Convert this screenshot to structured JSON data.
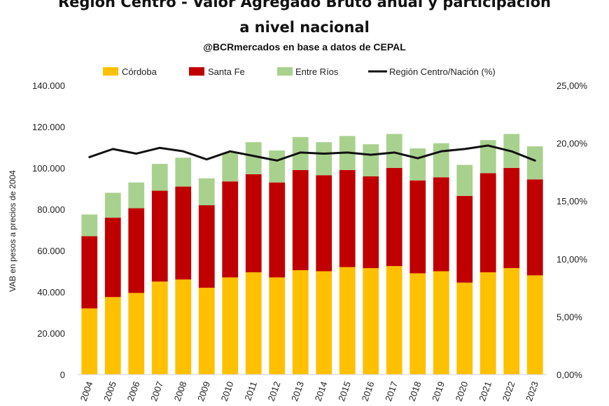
{
  "chart_data": {
    "type": "bar",
    "stacked": true,
    "title_line1": "Región Centro - Valor Agregado Bruto anual y participación",
    "title_line2": "a nivel nacional",
    "subtitle": "@BCRmercados en base a datos de CEPAL",
    "ylabel": "VAB en pesos a precios de 2004",
    "categories": [
      "2004",
      "2005",
      "2006",
      "2007",
      "2008",
      "2009",
      "2010",
      "2011",
      "2012",
      "2013",
      "2014",
      "2015",
      "2016",
      "2017",
      "2018",
      "2019",
      "2020",
      "2021",
      "2022",
      "2023"
    ],
    "series": [
      {
        "name": "Córdoba",
        "color": "#FFC000",
        "values": [
          32000,
          37500,
          39500,
          45000,
          46000,
          42000,
          47000,
          49500,
          47000,
          50500,
          50000,
          52000,
          51500,
          52500,
          49000,
          50000,
          44500,
          49500,
          51500,
          48000
        ]
      },
      {
        "name": "Santa Fe",
        "color": "#C00000",
        "values": [
          35000,
          38500,
          41000,
          44000,
          45000,
          40000,
          46500,
          47500,
          46000,
          48500,
          46500,
          47000,
          44500,
          47500,
          45000,
          45500,
          42000,
          48000,
          48500,
          46500
        ]
      },
      {
        "name": "Entre Ríos",
        "color": "#A9D18E",
        "values": [
          10500,
          12000,
          12500,
          13000,
          14000,
          13000,
          14000,
          15500,
          15500,
          16000,
          16000,
          16500,
          15500,
          16500,
          15500,
          16500,
          15000,
          16000,
          16500,
          16000
        ]
      }
    ],
    "line_series": {
      "name": "Región Centro/Nación (%)",
      "color": "#111111",
      "values": [
        18.8,
        19.5,
        19.1,
        19.6,
        19.3,
        18.6,
        19.3,
        18.9,
        18.5,
        19.2,
        19.1,
        19.2,
        19.0,
        19.2,
        18.7,
        19.3,
        19.5,
        19.8,
        19.3,
        18.5
      ]
    },
    "ylim": [
      0,
      140000
    ],
    "yticks": [
      "0",
      "20.000",
      "40.000",
      "60.000",
      "80.000",
      "100.000",
      "120.000",
      "140.000"
    ],
    "y2lim": [
      0,
      25
    ],
    "y2ticks": [
      "0,00%",
      "5,00%",
      "10,00%",
      "15,00%",
      "20,00%",
      "25,00%"
    ],
    "legend_position": "top"
  }
}
